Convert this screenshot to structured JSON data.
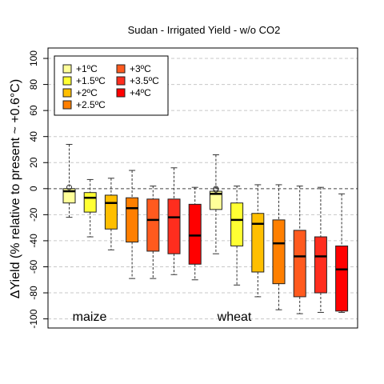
{
  "chart_data": {
    "type": "box",
    "title": "Sudan - Irrigated Yield - w/o CO2",
    "ylabel": "ΔYield (% relative to present ~ +0.6°C)",
    "xlabel": "",
    "ylim": [
      -107,
      108
    ],
    "yticks": [
      -100,
      -80,
      -60,
      -40,
      -20,
      0,
      20,
      40,
      60,
      80,
      100
    ],
    "grid": "horizontal dashed",
    "legend_position": "top-left",
    "colors": {
      "+1ºC": "#ffff99",
      "+1.5ºC": "#ffff33",
      "+2ºC": "#ffbf00",
      "+2.5ºC": "#ff7f00",
      "+3ºC": "#ff5a1e",
      "+3.5ºC": "#ff2d1e",
      "+4ºC": "#ff0000"
    },
    "legend": [
      "+1ºC",
      "+1.5ºC",
      "+2ºC",
      "+2.5ºC",
      "+3ºC",
      "+3.5ºC",
      "+4ºC"
    ],
    "groups": [
      {
        "label": "maize",
        "boxes": [
          {
            "series": "+1ºC",
            "min": -22,
            "q1": -11,
            "median": -2,
            "q3": 0,
            "max": 34,
            "outliers": [
              1
            ]
          },
          {
            "series": "+1.5ºC",
            "min": -37,
            "q1": -18,
            "median": -7,
            "q3": -3,
            "max": 7,
            "outliers": []
          },
          {
            "series": "+2ºC",
            "min": -47,
            "q1": -31,
            "median": -11,
            "q3": -5,
            "max": 8,
            "outliers": []
          },
          {
            "series": "+2.5ºC",
            "min": -69,
            "q1": -41,
            "median": -15,
            "q3": -7,
            "max": 14,
            "outliers": []
          },
          {
            "series": "+3ºC",
            "min": -69,
            "q1": -48,
            "median": -24,
            "q3": -8,
            "max": 2,
            "outliers": []
          },
          {
            "series": "+3.5ºC",
            "min": -66,
            "q1": -50,
            "median": -22,
            "q3": -8,
            "max": 16,
            "outliers": []
          },
          {
            "series": "+4ºC",
            "min": -70,
            "q1": -58,
            "median": -36,
            "q3": -12,
            "max": 1,
            "outliers": []
          }
        ]
      },
      {
        "label": "wheat",
        "boxes": [
          {
            "series": "+1ºC",
            "min": -50,
            "q1": -16,
            "median": -4,
            "q3": -2,
            "max": 26,
            "outliers": [
              0,
              -1
            ]
          },
          {
            "series": "+1.5ºC",
            "min": -74,
            "q1": -44,
            "median": -24,
            "q3": -11,
            "max": 2,
            "outliers": []
          },
          {
            "series": "+2ºC",
            "min": -83,
            "q1": -64,
            "median": -27,
            "q3": -19,
            "max": 3,
            "outliers": []
          },
          {
            "series": "+2.5ºC",
            "min": -93,
            "q1": -73,
            "median": -42,
            "q3": -24,
            "max": 3,
            "outliers": []
          },
          {
            "series": "+3ºC",
            "min": -96,
            "q1": -83,
            "median": -52,
            "q3": -32,
            "max": 2,
            "outliers": []
          },
          {
            "series": "+3.5ºC",
            "min": -95,
            "q1": -80,
            "median": -52,
            "q3": -37,
            "max": 1,
            "outliers": []
          },
          {
            "series": "+4ºC",
            "min": -95,
            "q1": -94,
            "median": -62,
            "q3": -44,
            "max": -4,
            "outliers": []
          }
        ]
      }
    ]
  }
}
